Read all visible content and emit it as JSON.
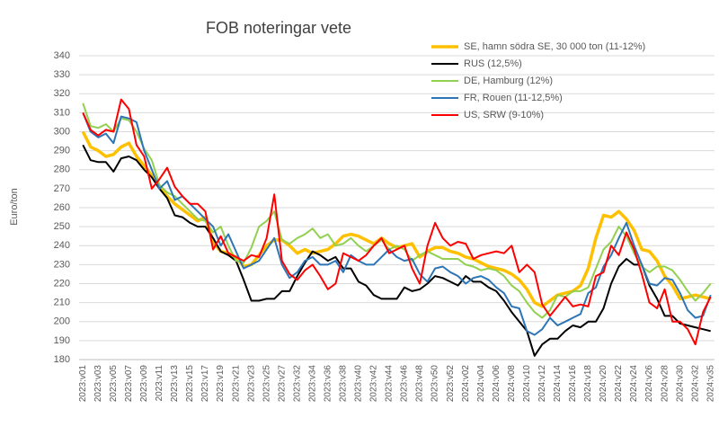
{
  "chart_data": {
    "type": "line",
    "title": "FOB noteringar vete",
    "y_label": "Euro/ton",
    "categories": [
      "2023:v01",
      null,
      "2023:v03",
      null,
      "2023:v05",
      null,
      "2023:v07",
      null,
      "2023:v09",
      null,
      "2023:v11",
      null,
      "2023:v13",
      null,
      "2023:v15",
      null,
      "2023:v17",
      null,
      "2023:v19",
      null,
      "2023:v21",
      null,
      "2023:v23",
      null,
      "2023:v25",
      null,
      "2023:v27",
      null,
      "2023:v32",
      null,
      "2023:v34",
      null,
      "2023:v36",
      null,
      "2023:v38",
      null,
      "2023:v40",
      null,
      "2023:v42",
      null,
      "2023:v44",
      null,
      "2023:v46",
      null,
      "2023:v48",
      null,
      "2023:v50",
      null,
      "2023:v52",
      null,
      "2024:v02",
      null,
      "2024:v04",
      null,
      "2024:v06",
      null,
      "2024:v08",
      null,
      "2024:v10",
      null,
      "2024:v12",
      null,
      "2024:v14",
      null,
      "2024:v16",
      null,
      "2024:v18",
      null,
      "2024:v20",
      null,
      "2024:v22",
      null,
      "2024:v24",
      null,
      "2024:v26",
      null,
      "2024:v28",
      null,
      "2024:v30",
      null,
      "2024:v32",
      null,
      "2024:v35"
    ],
    "series": [
      {
        "name": "SE, hamn södra SE, 30 000 ton (11-12%)",
        "color": "#ffc000",
        "values": [
          300,
          292,
          290,
          287,
          288,
          292,
          294,
          287,
          282,
          277,
          271,
          266,
          262,
          259,
          256,
          253,
          255,
          242,
          237,
          236,
          234,
          229,
          230,
          235,
          240,
          243,
          243,
          240,
          236,
          238,
          236,
          237,
          238,
          241,
          245,
          246,
          245,
          243,
          241,
          244,
          241,
          239,
          240,
          241,
          234,
          237,
          239,
          239,
          237,
          236,
          234,
          233,
          231,
          229,
          228,
          227,
          225,
          222,
          217,
          210,
          208,
          211,
          214,
          215,
          216,
          219,
          228,
          244,
          256,
          255,
          258,
          254,
          248,
          238,
          237,
          232,
          224,
          219,
          212,
          213,
          214,
          213,
          212
        ]
      },
      {
        "name": "RUS (12,5%)",
        "color": "#000000",
        "values": [
          293,
          285,
          284,
          284,
          279,
          286,
          287,
          285,
          280,
          276,
          270,
          265,
          256,
          255,
          252,
          250,
          250,
          244,
          237,
          235,
          232,
          222,
          211,
          211,
          212,
          212,
          216,
          216,
          224,
          231,
          237,
          235,
          232,
          234,
          228,
          228,
          221,
          219,
          214,
          212,
          212,
          212,
          218,
          216,
          217,
          220,
          224,
          223,
          221,
          219,
          224,
          221,
          221,
          218,
          216,
          211,
          205,
          200,
          195,
          182,
          188,
          191,
          191,
          195,
          198,
          197,
          200,
          200,
          207,
          220,
          229,
          233,
          230,
          230,
          219,
          212,
          203,
          203,
          199,
          198,
          197,
          196,
          195
        ]
      },
      {
        "name": "DE, Hamburg (12%)",
        "color": "#92d050",
        "values": [
          315,
          303,
          302,
          304,
          300,
          307,
          306,
          300,
          291,
          285,
          272,
          268,
          266,
          262,
          258,
          254,
          253,
          247,
          250,
          240,
          232,
          231,
          239,
          250,
          253,
          258,
          243,
          241,
          244,
          246,
          249,
          244,
          246,
          240,
          241,
          244,
          240,
          237,
          240,
          243,
          238,
          240,
          238,
          232,
          235,
          237,
          235,
          233,
          233,
          233,
          230,
          229,
          227,
          228,
          227,
          224,
          219,
          216,
          210,
          205,
          202,
          206,
          214,
          213,
          216,
          216,
          218,
          228,
          238,
          242,
          250,
          245,
          236,
          229,
          226,
          229,
          229,
          227,
          222,
          216,
          211,
          215,
          220
        ]
      },
      {
        "name": "FR, Rouen (11-12,5%)",
        "color": "#2e75b6",
        "values": [
          310,
          300,
          297,
          299,
          294,
          308,
          307,
          305,
          290,
          280,
          270,
          274,
          264,
          266,
          262,
          258,
          254,
          250,
          240,
          246,
          237,
          228,
          230,
          232,
          238,
          244,
          230,
          223,
          226,
          232,
          234,
          230,
          230,
          232,
          226,
          235,
          232,
          230,
          230,
          234,
          238,
          234,
          232,
          233,
          225,
          221,
          228,
          229,
          226,
          224,
          220,
          223,
          224,
          222,
          218,
          215,
          208,
          207,
          195,
          193,
          196,
          202,
          198,
          200,
          202,
          204,
          215,
          218,
          229,
          235,
          244,
          252,
          240,
          230,
          220,
          219,
          223,
          222,
          215,
          206,
          202,
          203,
          214
        ]
      },
      {
        "name": "US, SRW (9-10%)",
        "color": "#ff0000",
        "values": [
          310,
          301,
          298,
          301,
          300,
          317,
          312,
          293,
          287,
          270,
          275,
          281,
          271,
          266,
          262,
          262,
          258,
          238,
          245,
          236,
          234,
          232,
          235,
          234,
          244,
          267,
          232,
          225,
          222,
          227,
          230,
          224,
          217,
          220,
          236,
          234,
          232,
          235,
          240,
          244,
          236,
          238,
          240,
          228,
          220,
          240,
          252,
          244,
          240,
          242,
          241,
          233,
          235,
          236,
          237,
          236,
          240,
          226,
          230,
          226,
          209,
          203,
          208,
          213,
          208,
          209,
          208,
          224,
          226,
          240,
          235,
          247,
          238,
          225,
          210,
          207,
          217,
          200,
          200,
          196,
          188,
          205,
          213
        ]
      }
    ],
    "ylim": [
      180,
      340
    ],
    "yticks": [
      180,
      190,
      200,
      210,
      220,
      230,
      240,
      250,
      260,
      270,
      280,
      290,
      300,
      310,
      320,
      330,
      340
    ],
    "grid": true,
    "legend": "top-right"
  }
}
